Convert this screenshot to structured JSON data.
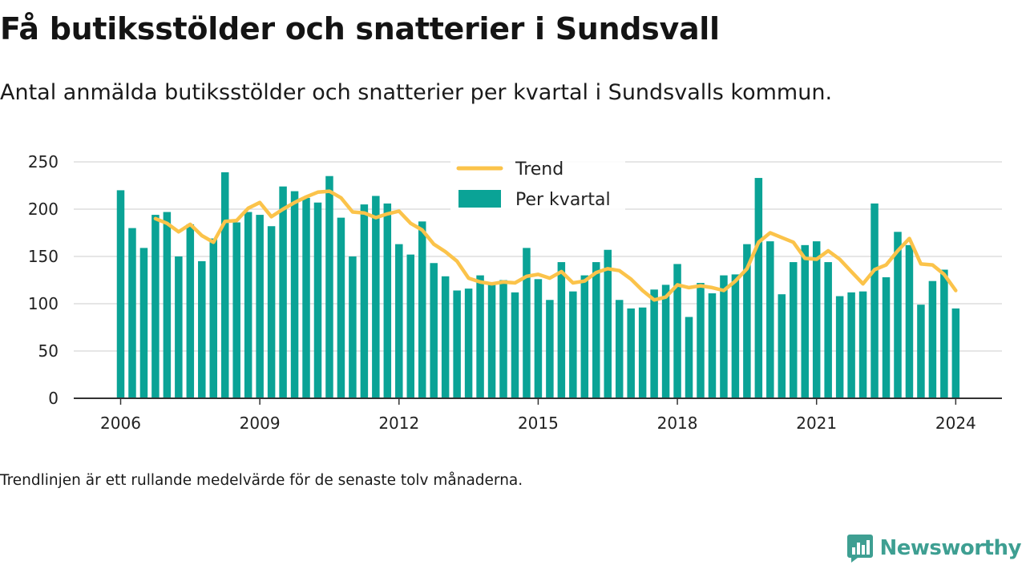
{
  "title": "Få butiksstölder och snatterier i Sundsvall",
  "subtitle": "Antal anmälda butiksstölder och snatterier per kvartal i Sundsvalls kommun.",
  "footnote": "Trendlinjen är ett rullande medelvärde för de senaste tolv månaderna.",
  "brand": {
    "name": "Newsworthy",
    "icon": "newsworthy-logo-icon"
  },
  "colors": {
    "bars": "#0aa396",
    "trend": "#fbc34a",
    "grid": "#dddddd",
    "axis": "#333333",
    "brand": "#3e9f92"
  },
  "chart_data": {
    "type": "bar",
    "start": "2006 Q1",
    "x_tick_labels": [
      "2006",
      "2009",
      "2012",
      "2015",
      "2018",
      "2021",
      "2024"
    ],
    "y_ticks": [
      0,
      50,
      100,
      150,
      200,
      250
    ],
    "ylim": [
      0,
      255
    ],
    "legend": {
      "placement": "top-center",
      "entries": [
        "Trend",
        "Per kvartal"
      ]
    },
    "series": [
      {
        "name": "Per kvartal",
        "type": "bar",
        "values": [
          220,
          180,
          159,
          194,
          197,
          150,
          184,
          145,
          169,
          239,
          186,
          197,
          194,
          182,
          224,
          219,
          212,
          207,
          235,
          191,
          150,
          205,
          214,
          206,
          163,
          152,
          187,
          143,
          129,
          114,
          116,
          130,
          122,
          125,
          112,
          159,
          126,
          104,
          144,
          113,
          130,
          144,
          157,
          104,
          95,
          96,
          115,
          120,
          142,
          86,
          122,
          111,
          130,
          131,
          163,
          233,
          166,
          110,
          144,
          162,
          166,
          144,
          108,
          112,
          113,
          206,
          128,
          176,
          162,
          99,
          124,
          136,
          95
        ]
      },
      {
        "name": "Trend",
        "type": "line",
        "start_index": 3,
        "values": [
          190,
          185,
          176,
          184,
          172,
          165,
          187,
          188,
          201,
          207,
          192,
          200,
          207,
          213,
          218,
          219,
          212,
          197,
          196,
          191,
          195,
          198,
          185,
          178,
          163,
          155,
          145,
          127,
          123,
          121,
          123,
          122,
          129,
          131,
          127,
          134,
          122,
          124,
          133,
          137,
          135,
          126,
          114,
          104,
          107,
          120,
          117,
          119,
          117,
          114,
          124,
          137,
          165,
          175,
          170,
          165,
          148,
          147,
          156,
          147,
          134,
          121,
          136,
          141,
          156,
          169,
          142,
          141,
          131,
          114
        ]
      }
    ]
  }
}
